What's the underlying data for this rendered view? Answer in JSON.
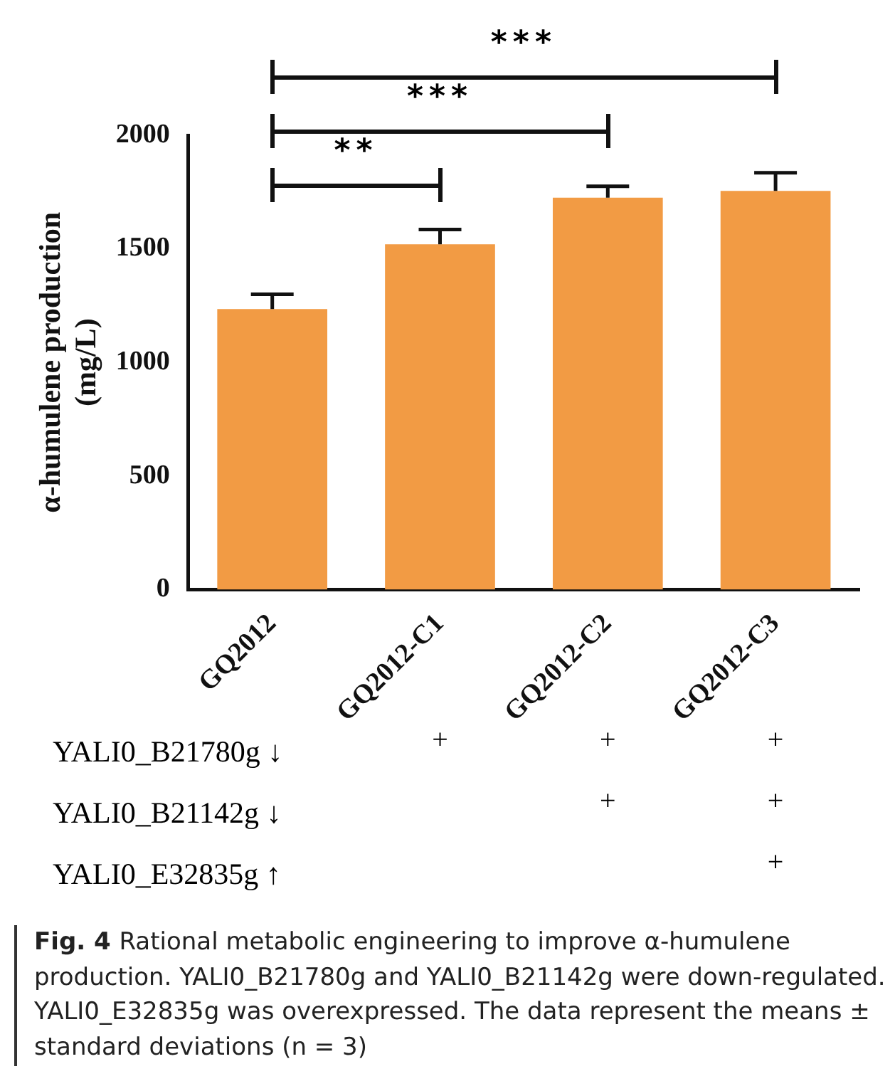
{
  "chart_data": {
    "type": "bar",
    "ylabel": "α-humulene production (mg/L)",
    "categories": [
      "GQ2012",
      "GQ2012-C1",
      "GQ2012-C2",
      "GQ2012-C3"
    ],
    "values": [
      1235,
      1520,
      1725,
      1755
    ],
    "errors": [
      65,
      65,
      50,
      80
    ],
    "color": "#f29b44",
    "ylim": [
      0,
      2000
    ],
    "yticks": [
      0,
      500,
      1000,
      1500,
      2000
    ],
    "grid": false,
    "legend": false,
    "annotations": [
      "**",
      "***",
      "***",
      "YALI0_B21780g ↓",
      "+",
      "+",
      "+",
      "YALI0_B21142g ↓",
      "+",
      "+",
      "YALI0_E32835g ↑",
      "+",
      "Fig. 4 Rational metabolic engineering to improve α-humulene production. YALI0_B21780g and YALI0_B21142g were down-regulated. YALI0_E32835g was overexpressed. The data represent the means ± standard deviations (n = 3)"
    ]
  }
}
